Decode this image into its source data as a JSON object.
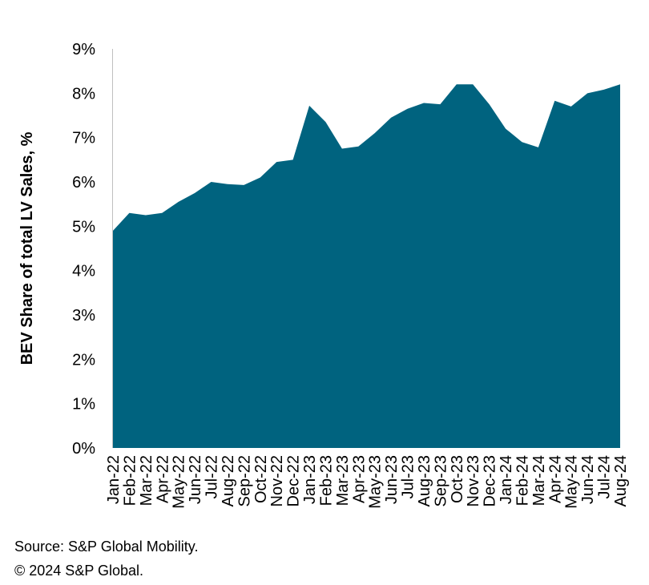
{
  "chart_data": {
    "type": "area",
    "title": "",
    "xlabel": "",
    "ylabel": "BEV Share of total LV Sales, %",
    "ylim": [
      0,
      9
    ],
    "yticks": [
      "0%",
      "1%",
      "2%",
      "3%",
      "4%",
      "5%",
      "6%",
      "7%",
      "8%",
      "9%"
    ],
    "grid": false,
    "legend": "none",
    "fill_color": "#00637f",
    "categories": [
      "Jan-22",
      "Feb-22",
      "Mar-22",
      "Apr-22",
      "May-22",
      "Jun-22",
      "Jul-22",
      "Aug-22",
      "Sep-22",
      "Oct-22",
      "Nov-22",
      "Dec-22",
      "Jan-23",
      "Feb-23",
      "Mar-23",
      "Apr-23",
      "May-23",
      "Jun-23",
      "Jul-23",
      "Aug-23",
      "Sep-23",
      "Oct-23",
      "Nov-23",
      "Dec-23",
      "Jan-24",
      "Feb-24",
      "Mar-24",
      "Apr-24",
      "May-24",
      "Jun-24",
      "Jul-24",
      "Aug-24"
    ],
    "values": [
      4.9,
      5.3,
      5.25,
      5.3,
      5.55,
      5.75,
      6.0,
      5.95,
      5.93,
      6.1,
      6.45,
      6.5,
      7.72,
      7.35,
      6.75,
      6.8,
      7.1,
      7.45,
      7.65,
      7.78,
      7.75,
      8.2,
      8.2,
      7.75,
      7.2,
      6.9,
      6.78,
      7.83,
      7.7,
      8.0,
      8.08,
      8.2
    ]
  },
  "footer": {
    "source": "Source: S&P Global Mobility.",
    "copyright": "© 2024 S&P Global."
  }
}
